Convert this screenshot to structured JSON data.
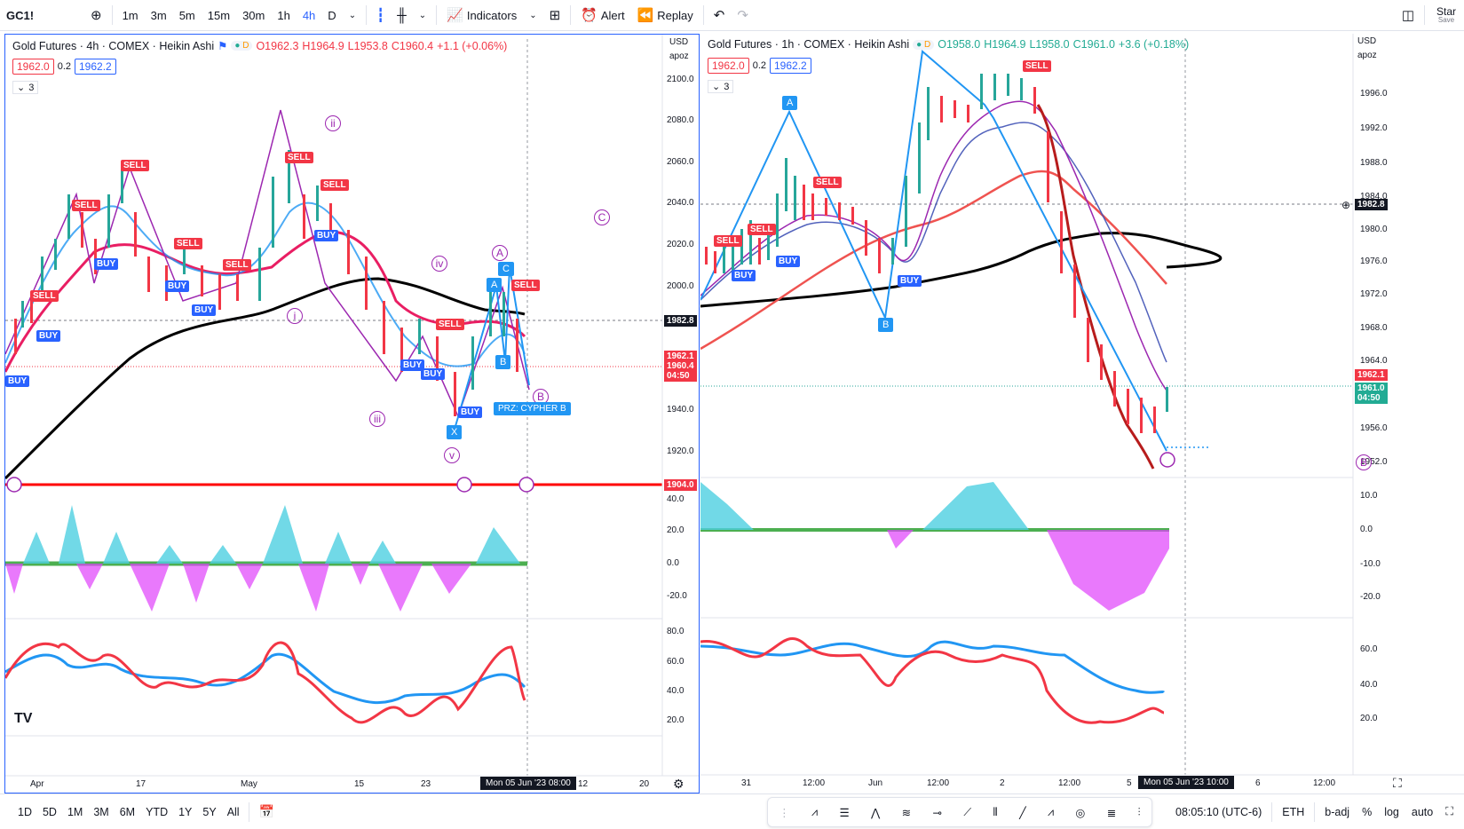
{
  "topbar": {
    "symbol": "GC1!",
    "intervals": [
      "1m",
      "3m",
      "5m",
      "15m",
      "30m",
      "1h",
      "4h",
      "D"
    ],
    "active_interval": "4h",
    "indicators_label": "Indicators",
    "alert_label": "Alert",
    "replay_label": "Replay",
    "star_label": "Star",
    "save_label": "Save"
  },
  "left_chart": {
    "title": "Gold Futures · 4h · COMEX · Heikin Ashi",
    "ohlc": {
      "o": "O1962.3",
      "h": "H1964.9",
      "l": "L1953.8",
      "c": "C1960.4",
      "chg": "+1.1 (+0.06%)"
    },
    "box_red": "1962.0",
    "mid": "0.2",
    "box_blue": "1962.2",
    "collapse": "3",
    "currency": "USD",
    "scale_mode": "apoz",
    "price_axis": [
      "2100.0",
      "2080.0",
      "2060.0",
      "2040.0",
      "2020.0",
      "2000.0",
      "1982.8",
      "1962.1",
      "1960.4",
      "04:50",
      "1940.0",
      "1920.0",
      "1904.0"
    ],
    "osc_axis": [
      "40.0",
      "20.0",
      "0.0",
      "-20.0"
    ],
    "rsi_axis": [
      "80.0",
      "60.0",
      "40.0",
      "20.0"
    ],
    "time_axis": [
      "Apr",
      "17",
      "May",
      "15",
      "23",
      "12",
      "20"
    ],
    "crosshair_date": "Mon 05 Jun '23   08:00",
    "prz_label": "PRZ: CYPHER B",
    "waves": [
      "ii",
      "i",
      "iii",
      "iv",
      "v",
      "A",
      "B",
      "C"
    ],
    "points": [
      "A",
      "B",
      "C",
      "X"
    ],
    "sell_label": "SELL",
    "buy_label": "BUY",
    "logo": "TV"
  },
  "right_chart": {
    "title": "Gold Futures · 1h · COMEX · Heikin Ashi",
    "ohlc": {
      "o": "O1958.0",
      "h": "H1964.9",
      "l": "L1958.0",
      "c": "C1961.0",
      "chg": "+3.6 (+0.18%)"
    },
    "box_red": "1962.0",
    "mid": "0.2",
    "box_blue": "1962.2",
    "collapse": "3",
    "currency": "USD",
    "scale_mode": "apoz",
    "price_axis": [
      "1996.0",
      "1992.0",
      "1988.0",
      "1984.0",
      "1982.8",
      "1980.0",
      "1976.0",
      "1972.0",
      "1968.0",
      "1964.0",
      "1962.1",
      "1961.0",
      "04:50",
      "1956.0",
      "1952.0"
    ],
    "osc_axis": [
      "10.0",
      "0.0",
      "-10.0",
      "-20.0"
    ],
    "rsi_axis": [
      "60.0",
      "40.0",
      "20.0"
    ],
    "time_axis": [
      "31",
      "12:00",
      "Jun",
      "12:00",
      "2",
      "12:00",
      "5",
      "6",
      "12:00"
    ],
    "crosshair_date": "Mon 05 Jun '23   10:00",
    "points": [
      "A",
      "B"
    ],
    "sell_label": "SELL",
    "buy_label": "BUY"
  },
  "bottombar": {
    "ranges": [
      "1D",
      "5D",
      "1M",
      "3M",
      "6M",
      "YTD",
      "1Y",
      "5Y",
      "All"
    ],
    "time": "08:05:10 (UTC-6)",
    "session": "ETH",
    "adj": "b-adj",
    "pct": "%",
    "log": "log",
    "auto": "auto"
  },
  "colors": {
    "accent": "#2962ff",
    "sell": "#f23645",
    "buy": "#2962ff",
    "support": "#ff0000",
    "ma_black": "#000000",
    "wave": "#9c27b0"
  }
}
